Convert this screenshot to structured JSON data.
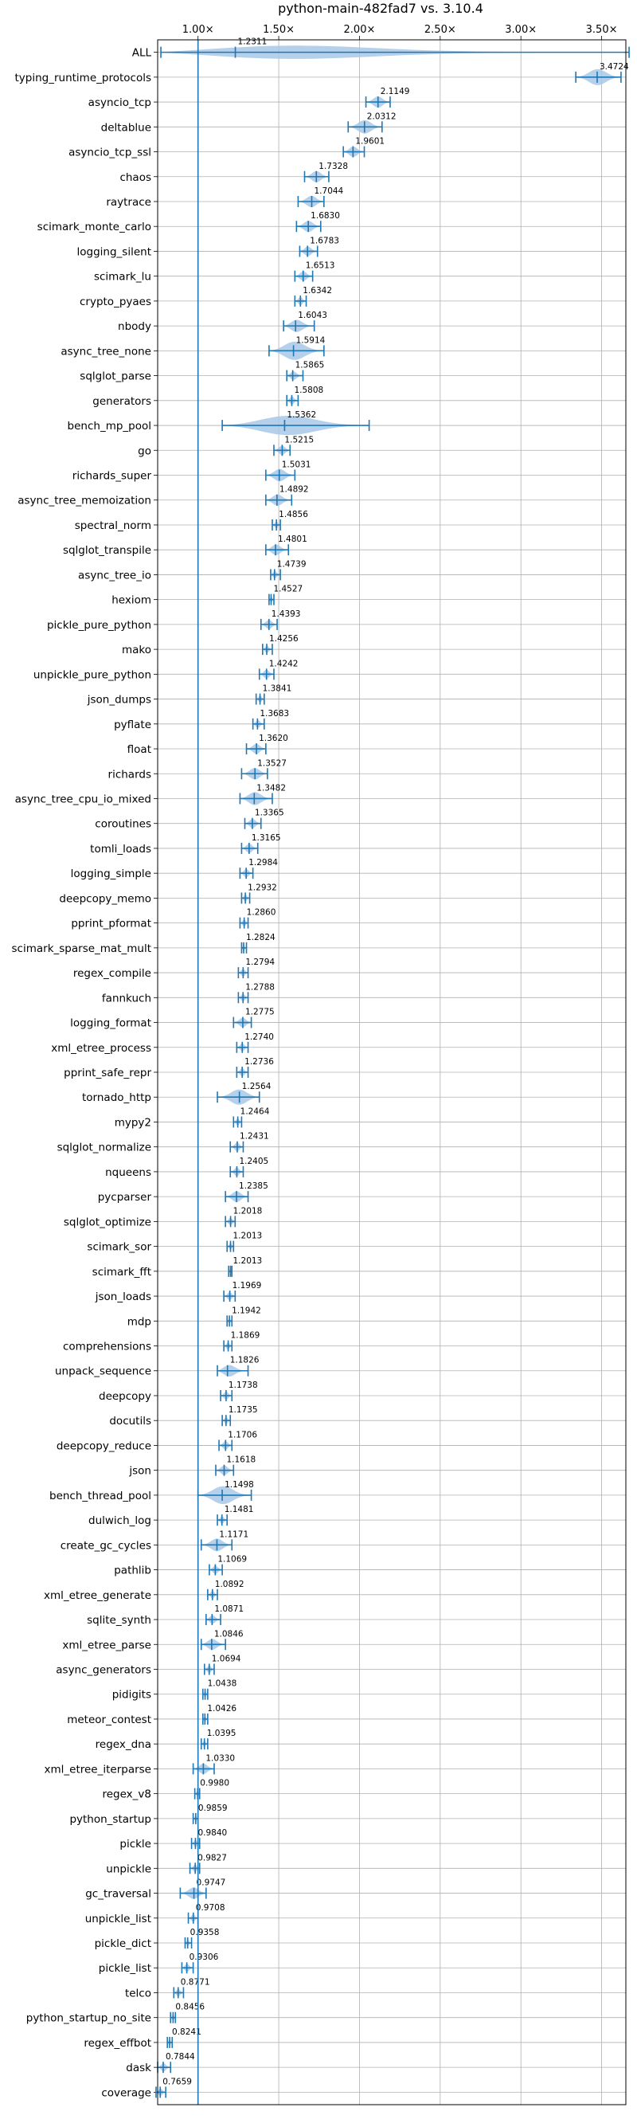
{
  "chart_data": {
    "type": "violin",
    "title": "python-main-482fad7 vs. 3.10.4",
    "xlim": [
      0.75,
      3.65
    ],
    "x_ticks": [
      1.0,
      1.5,
      2.0,
      2.5,
      3.0,
      3.5
    ],
    "x_tick_labels": [
      "1.00×",
      "1.50×",
      "2.00×",
      "2.50×",
      "3.00×",
      "3.50×"
    ],
    "x_ticks_position": "top",
    "grid": true,
    "reference_line": 1.0,
    "series_color": "#1f77b4",
    "violin_fill": "#a8c8e8",
    "rows": [
      {
        "name": "ALL",
        "value": 1.2311,
        "label": "1.2311",
        "min": 0.77,
        "max": 3.67
      },
      {
        "name": "typing_runtime_protocols",
        "value": 3.4724,
        "label": "3.4724",
        "min": 3.34,
        "max": 3.62
      },
      {
        "name": "asyncio_tcp",
        "value": 2.1149,
        "label": "2.1149",
        "min": 2.04,
        "max": 2.19
      },
      {
        "name": "deltablue",
        "value": 2.0312,
        "label": "2.0312",
        "min": 1.93,
        "max": 2.14
      },
      {
        "name": "asyncio_tcp_ssl",
        "value": 1.9601,
        "label": "1.9601",
        "min": 1.9,
        "max": 2.03
      },
      {
        "name": "chaos",
        "value": 1.7328,
        "label": "1.7328",
        "min": 1.66,
        "max": 1.81
      },
      {
        "name": "raytrace",
        "value": 1.7044,
        "label": "1.7044",
        "min": 1.62,
        "max": 1.78
      },
      {
        "name": "scimark_monte_carlo",
        "value": 1.683,
        "label": "1.6830",
        "min": 1.61,
        "max": 1.76
      },
      {
        "name": "logging_silent",
        "value": 1.6783,
        "label": "1.6783",
        "min": 1.63,
        "max": 1.74
      },
      {
        "name": "scimark_lu",
        "value": 1.6513,
        "label": "1.6513",
        "min": 1.6,
        "max": 1.71
      },
      {
        "name": "crypto_pyaes",
        "value": 1.6342,
        "label": "1.6342",
        "min": 1.6,
        "max": 1.67
      },
      {
        "name": "nbody",
        "value": 1.6043,
        "label": "1.6043",
        "min": 1.53,
        "max": 1.72
      },
      {
        "name": "async_tree_none",
        "value": 1.5914,
        "label": "1.5914",
        "min": 1.44,
        "max": 1.78
      },
      {
        "name": "sqlglot_parse",
        "value": 1.5865,
        "label": "1.5865",
        "min": 1.55,
        "max": 1.65
      },
      {
        "name": "generators",
        "value": 1.5808,
        "label": "1.5808",
        "min": 1.55,
        "max": 1.62
      },
      {
        "name": "bench_mp_pool",
        "value": 1.5362,
        "label": "1.5362",
        "min": 1.15,
        "max": 2.06
      },
      {
        "name": "go",
        "value": 1.5215,
        "label": "1.5215",
        "min": 1.47,
        "max": 1.57
      },
      {
        "name": "richards_super",
        "value": 1.5031,
        "label": "1.5031",
        "min": 1.42,
        "max": 1.6
      },
      {
        "name": "async_tree_memoization",
        "value": 1.4892,
        "label": "1.4892",
        "min": 1.42,
        "max": 1.58
      },
      {
        "name": "spectral_norm",
        "value": 1.4856,
        "label": "1.4856",
        "min": 1.46,
        "max": 1.51
      },
      {
        "name": "sqlglot_transpile",
        "value": 1.4801,
        "label": "1.4801",
        "min": 1.42,
        "max": 1.56
      },
      {
        "name": "async_tree_io",
        "value": 1.4739,
        "label": "1.4739",
        "min": 1.45,
        "max": 1.51
      },
      {
        "name": "hexiom",
        "value": 1.4527,
        "label": "1.4527",
        "min": 1.44,
        "max": 1.47
      },
      {
        "name": "pickle_pure_python",
        "value": 1.4393,
        "label": "1.4393",
        "min": 1.39,
        "max": 1.49
      },
      {
        "name": "mako",
        "value": 1.4256,
        "label": "1.4256",
        "min": 1.4,
        "max": 1.46
      },
      {
        "name": "unpickle_pure_python",
        "value": 1.4242,
        "label": "1.4242",
        "min": 1.38,
        "max": 1.47
      },
      {
        "name": "json_dumps",
        "value": 1.3841,
        "label": "1.3841",
        "min": 1.36,
        "max": 1.41
      },
      {
        "name": "pyflate",
        "value": 1.3683,
        "label": "1.3683",
        "min": 1.34,
        "max": 1.41
      },
      {
        "name": "float",
        "value": 1.362,
        "label": "1.3620",
        "min": 1.3,
        "max": 1.42
      },
      {
        "name": "richards",
        "value": 1.3527,
        "label": "1.3527",
        "min": 1.27,
        "max": 1.43
      },
      {
        "name": "async_tree_cpu_io_mixed",
        "value": 1.3482,
        "label": "1.3482",
        "min": 1.26,
        "max": 1.46
      },
      {
        "name": "coroutines",
        "value": 1.3365,
        "label": "1.3365",
        "min": 1.29,
        "max": 1.39
      },
      {
        "name": "tomli_loads",
        "value": 1.3165,
        "label": "1.3165",
        "min": 1.27,
        "max": 1.37
      },
      {
        "name": "logging_simple",
        "value": 1.2984,
        "label": "1.2984",
        "min": 1.26,
        "max": 1.34
      },
      {
        "name": "deepcopy_memo",
        "value": 1.2932,
        "label": "1.2932",
        "min": 1.27,
        "max": 1.32
      },
      {
        "name": "pprint_pformat",
        "value": 1.286,
        "label": "1.2860",
        "min": 1.26,
        "max": 1.31
      },
      {
        "name": "scimark_sparse_mat_mult",
        "value": 1.2824,
        "label": "1.2824",
        "min": 1.27,
        "max": 1.3
      },
      {
        "name": "regex_compile",
        "value": 1.2794,
        "label": "1.2794",
        "min": 1.25,
        "max": 1.31
      },
      {
        "name": "fannkuch",
        "value": 1.2788,
        "label": "1.2788",
        "min": 1.25,
        "max": 1.31
      },
      {
        "name": "logging_format",
        "value": 1.2775,
        "label": "1.2775",
        "min": 1.22,
        "max": 1.33
      },
      {
        "name": "xml_etree_process",
        "value": 1.274,
        "label": "1.2740",
        "min": 1.24,
        "max": 1.31
      },
      {
        "name": "pprint_safe_repr",
        "value": 1.2736,
        "label": "1.2736",
        "min": 1.24,
        "max": 1.31
      },
      {
        "name": "tornado_http",
        "value": 1.2564,
        "label": "1.2564",
        "min": 1.12,
        "max": 1.38
      },
      {
        "name": "mypy2",
        "value": 1.2464,
        "label": "1.2464",
        "min": 1.22,
        "max": 1.27
      },
      {
        "name": "sqlglot_normalize",
        "value": 1.2431,
        "label": "1.2431",
        "min": 1.2,
        "max": 1.28
      },
      {
        "name": "nqueens",
        "value": 1.2405,
        "label": "1.2405",
        "min": 1.2,
        "max": 1.28
      },
      {
        "name": "pycparser",
        "value": 1.2385,
        "label": "1.2385",
        "min": 1.17,
        "max": 1.31
      },
      {
        "name": "sqlglot_optimize",
        "value": 1.2018,
        "label": "1.2018",
        "min": 1.17,
        "max": 1.23
      },
      {
        "name": "scimark_sor",
        "value": 1.2013,
        "label": "1.2013",
        "min": 1.18,
        "max": 1.22
      },
      {
        "name": "scimark_fft",
        "value": 1.2013,
        "label": "1.2013",
        "min": 1.19,
        "max": 1.21
      },
      {
        "name": "json_loads",
        "value": 1.1969,
        "label": "1.1969",
        "min": 1.16,
        "max": 1.23
      },
      {
        "name": "mdp",
        "value": 1.1942,
        "label": "1.1942",
        "min": 1.18,
        "max": 1.21
      },
      {
        "name": "comprehensions",
        "value": 1.1869,
        "label": "1.1869",
        "min": 1.16,
        "max": 1.21
      },
      {
        "name": "unpack_sequence",
        "value": 1.1826,
        "label": "1.1826",
        "min": 1.12,
        "max": 1.31
      },
      {
        "name": "deepcopy",
        "value": 1.1738,
        "label": "1.1738",
        "min": 1.14,
        "max": 1.21
      },
      {
        "name": "docutils",
        "value": 1.1735,
        "label": "1.1735",
        "min": 1.15,
        "max": 1.2
      },
      {
        "name": "deepcopy_reduce",
        "value": 1.1706,
        "label": "1.1706",
        "min": 1.13,
        "max": 1.21
      },
      {
        "name": "json",
        "value": 1.1618,
        "label": "1.1618",
        "min": 1.11,
        "max": 1.22
      },
      {
        "name": "bench_thread_pool",
        "value": 1.1498,
        "label": "1.1498",
        "min": 1.0,
        "max": 1.33
      },
      {
        "name": "dulwich_log",
        "value": 1.1481,
        "label": "1.1481",
        "min": 1.12,
        "max": 1.18
      },
      {
        "name": "create_gc_cycles",
        "value": 1.1171,
        "label": "1.1171",
        "min": 1.02,
        "max": 1.21
      },
      {
        "name": "pathlib",
        "value": 1.1069,
        "label": "1.1069",
        "min": 1.07,
        "max": 1.15
      },
      {
        "name": "xml_etree_generate",
        "value": 1.0892,
        "label": "1.0892",
        "min": 1.06,
        "max": 1.12
      },
      {
        "name": "sqlite_synth",
        "value": 1.0871,
        "label": "1.0871",
        "min": 1.05,
        "max": 1.14
      },
      {
        "name": "xml_etree_parse",
        "value": 1.0846,
        "label": "1.0846",
        "min": 1.02,
        "max": 1.17
      },
      {
        "name": "async_generators",
        "value": 1.0694,
        "label": "1.0694",
        "min": 1.04,
        "max": 1.1
      },
      {
        "name": "pidigits",
        "value": 1.0438,
        "label": "1.0438",
        "min": 1.03,
        "max": 1.06
      },
      {
        "name": "meteor_contest",
        "value": 1.0426,
        "label": "1.0426",
        "min": 1.03,
        "max": 1.06
      },
      {
        "name": "regex_dna",
        "value": 1.0395,
        "label": "1.0395",
        "min": 1.02,
        "max": 1.06
      },
      {
        "name": "xml_etree_iterparse",
        "value": 1.033,
        "label": "1.0330",
        "min": 0.97,
        "max": 1.1
      },
      {
        "name": "regex_v8",
        "value": 0.998,
        "label": "0.9980",
        "min": 0.98,
        "max": 1.01
      },
      {
        "name": "python_startup",
        "value": 0.9859,
        "label": "0.9859",
        "min": 0.97,
        "max": 1.0
      },
      {
        "name": "pickle",
        "value": 0.984,
        "label": "0.9840",
        "min": 0.96,
        "max": 1.01
      },
      {
        "name": "unpickle",
        "value": 0.9827,
        "label": "0.9827",
        "min": 0.95,
        "max": 1.01
      },
      {
        "name": "gc_traversal",
        "value": 0.9747,
        "label": "0.9747",
        "min": 0.89,
        "max": 1.05
      },
      {
        "name": "unpickle_list",
        "value": 0.9708,
        "label": "0.9708",
        "min": 0.94,
        "max": 1.0
      },
      {
        "name": "pickle_dict",
        "value": 0.9358,
        "label": "0.9358",
        "min": 0.92,
        "max": 0.96
      },
      {
        "name": "pickle_list",
        "value": 0.9306,
        "label": "0.9306",
        "min": 0.9,
        "max": 0.97
      },
      {
        "name": "telco",
        "value": 0.8771,
        "label": "0.8771",
        "min": 0.85,
        "max": 0.91
      },
      {
        "name": "python_startup_no_site",
        "value": 0.8456,
        "label": "0.8456",
        "min": 0.83,
        "max": 0.86
      },
      {
        "name": "regex_effbot",
        "value": 0.8241,
        "label": "0.8241",
        "min": 0.81,
        "max": 0.84
      },
      {
        "name": "dask",
        "value": 0.7844,
        "label": "0.7844",
        "min": 0.75,
        "max": 0.83
      },
      {
        "name": "coverage",
        "value": 0.7659,
        "label": "0.7659",
        "min": 0.74,
        "max": 0.8
      }
    ]
  }
}
